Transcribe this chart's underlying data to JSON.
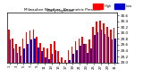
{
  "title": "Milwaukee Weather - Barometric Pressure",
  "subtitle": "Daily High/Low",
  "legend_high": "High",
  "legend_low": "Low",
  "color_high": "#ff0000",
  "color_low": "#0000cc",
  "background_color": "#ffffff",
  "plot_bg": "#ffffff",
  "ylim": [
    29.0,
    30.7
  ],
  "ytick_labels": [
    "29.0",
    "29.2",
    "29.4",
    "29.6",
    "29.8",
    "30.0",
    "30.2",
    "30.4",
    "30.6"
  ],
  "yticks": [
    29.0,
    29.2,
    29.4,
    29.6,
    29.8,
    30.0,
    30.2,
    30.4,
    30.6
  ],
  "n_bars": 31,
  "highs": [
    30.12,
    29.82,
    29.62,
    29.55,
    29.82,
    30.02,
    30.08,
    30.12,
    29.88,
    29.65,
    29.52,
    29.48,
    29.62,
    29.72,
    29.38,
    29.18,
    29.08,
    29.42,
    29.55,
    29.72,
    29.82,
    29.88,
    29.62,
    29.78,
    30.22,
    30.38,
    30.42,
    30.32,
    30.22,
    30.12,
    30.18
  ],
  "lows": [
    29.78,
    29.48,
    29.32,
    29.22,
    29.48,
    29.62,
    29.78,
    29.82,
    29.52,
    29.38,
    29.18,
    29.12,
    29.28,
    29.42,
    29.02,
    28.92,
    28.88,
    29.08,
    29.28,
    29.42,
    29.58,
    29.62,
    29.32,
    29.48,
    29.92,
    30.02,
    30.12,
    29.98,
    29.88,
    29.78,
    29.82
  ],
  "bar_width": 0.42
}
